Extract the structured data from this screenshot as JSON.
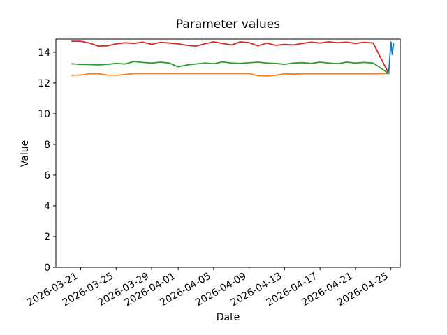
{
  "figure": {
    "background": "#ffffff"
  },
  "chart_data": {
    "type": "line",
    "title": "Parameter values",
    "xlabel": "Date",
    "ylabel": "Value",
    "grid": false,
    "legend": "none",
    "x_unit": "days since 2026-03-20",
    "x_epoch_date": "2026-03-20",
    "xlim": [
      -1.8,
      37.05
    ],
    "ylim": [
      0,
      14.86
    ],
    "yticks": [
      0,
      2,
      4,
      6,
      8,
      10,
      12,
      14
    ],
    "xticks": [
      {
        "d": 1,
        "label": "2026-03-21"
      },
      {
        "d": 5,
        "label": "2026-03-25"
      },
      {
        "d": 9,
        "label": "2026-03-29"
      },
      {
        "d": 12,
        "label": "2026-04-01"
      },
      {
        "d": 16,
        "label": "2026-04-05"
      },
      {
        "d": 20,
        "label": "2026-04-09"
      },
      {
        "d": 24,
        "label": "2026-04-13"
      },
      {
        "d": 28,
        "label": "2026-04-17"
      },
      {
        "d": 32,
        "label": "2026-04-21"
      },
      {
        "d": 36,
        "label": "2026-04-25"
      }
    ],
    "series": [
      {
        "name": "orange",
        "color": "#ff7f0e",
        "x": [
          0,
          1,
          2,
          3,
          4,
          5,
          6,
          7,
          8,
          9,
          10,
          11,
          12,
          13,
          14,
          15,
          16,
          17,
          18,
          19,
          20,
          21,
          22,
          23,
          24,
          25,
          26,
          27,
          28,
          29,
          30,
          31,
          32,
          33,
          34,
          35.75
        ],
        "y": [
          12.5,
          12.52,
          12.6,
          12.6,
          12.52,
          12.5,
          12.55,
          12.62,
          12.62,
          12.62,
          12.62,
          12.62,
          12.62,
          12.62,
          12.62,
          12.62,
          12.62,
          12.62,
          12.62,
          12.62,
          12.62,
          12.48,
          12.46,
          12.5,
          12.6,
          12.58,
          12.6,
          12.6,
          12.6,
          12.6,
          12.6,
          12.6,
          12.6,
          12.6,
          12.6,
          12.62
        ]
      },
      {
        "name": "green",
        "color": "#2ca02c",
        "x": [
          0,
          1,
          2,
          3,
          4,
          5,
          6,
          7,
          8,
          9,
          10,
          11,
          12,
          13,
          14,
          15,
          16,
          17,
          18,
          19,
          20,
          21,
          22,
          23,
          24,
          25,
          26,
          27,
          28,
          29,
          30,
          31,
          32,
          33,
          34,
          35.75
        ],
        "y": [
          13.25,
          13.22,
          13.2,
          13.18,
          13.22,
          13.28,
          13.24,
          13.4,
          13.34,
          13.3,
          13.36,
          13.3,
          13.05,
          13.18,
          13.24,
          13.3,
          13.26,
          13.38,
          13.3,
          13.28,
          13.32,
          13.36,
          13.3,
          13.28,
          13.22,
          13.3,
          13.33,
          13.28,
          13.36,
          13.3,
          13.26,
          13.36,
          13.3,
          13.34,
          13.3,
          12.62
        ]
      },
      {
        "name": "red",
        "color": "#d62728",
        "x": [
          0,
          1,
          2,
          3,
          4,
          5,
          6,
          7,
          8,
          9,
          10,
          11,
          12,
          13,
          14,
          15,
          16,
          17,
          18,
          19,
          20,
          21,
          22,
          23,
          24,
          25,
          26,
          27,
          28,
          29,
          30,
          31,
          32,
          33,
          34,
          35.75
        ],
        "y": [
          14.72,
          14.72,
          14.6,
          14.4,
          14.42,
          14.55,
          14.62,
          14.58,
          14.66,
          14.52,
          14.65,
          14.6,
          14.55,
          14.45,
          14.4,
          14.55,
          14.68,
          14.58,
          14.48,
          14.68,
          14.63,
          14.42,
          14.6,
          14.45,
          14.52,
          14.48,
          14.58,
          14.66,
          14.6,
          14.68,
          14.62,
          14.66,
          14.58,
          14.65,
          14.6,
          12.62
        ]
      },
      {
        "name": "blue",
        "color": "#1f77b4",
        "x": [
          35.75,
          36.0,
          36.15,
          36.3
        ],
        "y": [
          12.62,
          14.68,
          13.85,
          14.55
        ]
      }
    ]
  }
}
